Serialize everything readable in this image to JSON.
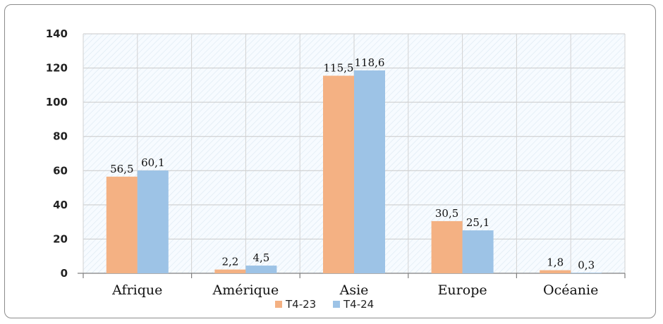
{
  "chart_data": {
    "type": "bar",
    "categories": [
      "Afrique",
      "Amérique",
      "Asie",
      "Europe",
      "Océanie"
    ],
    "series": [
      {
        "name": "T4-23",
        "values": [
          56.5,
          2.2,
          115.5,
          30.5,
          1.8
        ],
        "labels": [
          "56,5",
          "2,2",
          "115,5",
          "30,5",
          "1,8"
        ],
        "color": "#F4B183"
      },
      {
        "name": "T4-24",
        "values": [
          60.1,
          4.5,
          118.6,
          25.1,
          0.3
        ],
        "labels": [
          "60,1",
          "4,5",
          "118,6",
          "25,1",
          "0,3"
        ],
        "color": "#9DC3E6"
      }
    ],
    "y_ticks": [
      "0",
      "20",
      "40",
      "60",
      "80",
      "100",
      "120",
      "140"
    ],
    "ylim": [
      0,
      140
    ],
    "grid": true,
    "legend_position": "bottom"
  }
}
